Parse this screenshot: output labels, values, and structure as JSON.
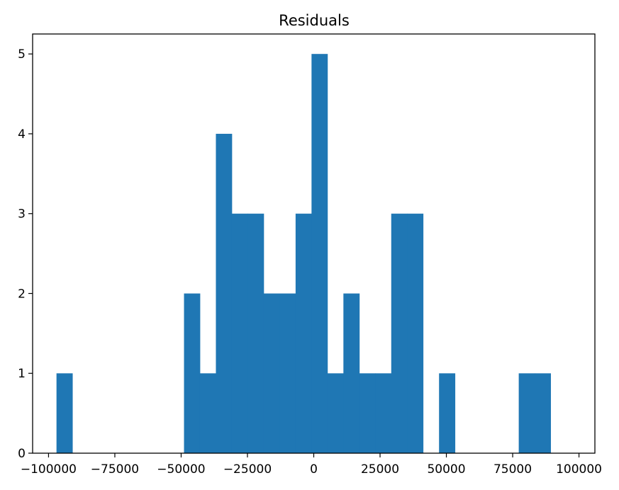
{
  "chart_data": {
    "type": "bar",
    "title": "Residuals",
    "xlabel": "",
    "ylabel": "",
    "bar_color": "#1f77b4",
    "bins": [
      {
        "x0": -97000,
        "x1": -90990,
        "count": 1
      },
      {
        "x0": -90990,
        "x1": -84980,
        "count": 0
      },
      {
        "x0": -84980,
        "x1": -78970,
        "count": 0
      },
      {
        "x0": -78970,
        "x1": -72960,
        "count": 0
      },
      {
        "x0": -72960,
        "x1": -66950,
        "count": 0
      },
      {
        "x0": -66950,
        "x1": -60940,
        "count": 0
      },
      {
        "x0": -60940,
        "x1": -54930,
        "count": 0
      },
      {
        "x0": -54930,
        "x1": -48920,
        "count": 0
      },
      {
        "x0": -48920,
        "x1": -42910,
        "count": 2
      },
      {
        "x0": -42910,
        "x1": -36900,
        "count": 1
      },
      {
        "x0": -36900,
        "x1": -30890,
        "count": 4
      },
      {
        "x0": -30890,
        "x1": -24880,
        "count": 3
      },
      {
        "x0": -24880,
        "x1": -18870,
        "count": 3
      },
      {
        "x0": -18870,
        "x1": -12860,
        "count": 2
      },
      {
        "x0": -12860,
        "x1": -6850,
        "count": 2
      },
      {
        "x0": -6850,
        "x1": -840,
        "count": 3
      },
      {
        "x0": -840,
        "x1": 5170,
        "count": 5
      },
      {
        "x0": 5170,
        "x1": 11180,
        "count": 1
      },
      {
        "x0": 11180,
        "x1": 17190,
        "count": 2
      },
      {
        "x0": 17190,
        "x1": 23200,
        "count": 1
      },
      {
        "x0": 23200,
        "x1": 29210,
        "count": 1
      },
      {
        "x0": 29210,
        "x1": 35220,
        "count": 3
      },
      {
        "x0": 35220,
        "x1": 41230,
        "count": 3
      },
      {
        "x0": 41230,
        "x1": 47240,
        "count": 0
      },
      {
        "x0": 47240,
        "x1": 53250,
        "count": 1
      },
      {
        "x0": 53250,
        "x1": 59260,
        "count": 0
      },
      {
        "x0": 59260,
        "x1": 65270,
        "count": 0
      },
      {
        "x0": 65270,
        "x1": 71280,
        "count": 0
      },
      {
        "x0": 71280,
        "x1": 77290,
        "count": 0
      },
      {
        "x0": 77290,
        "x1": 83300,
        "count": 1
      },
      {
        "x0": 83300,
        "x1": 89310,
        "count": 1
      }
    ],
    "xlim": [
      -106000,
      106000
    ],
    "ylim": [
      0,
      5.25
    ],
    "x_ticks": [
      {
        "value": -100000,
        "label": "−100000"
      },
      {
        "value": -75000,
        "label": "−75000"
      },
      {
        "value": -50000,
        "label": "−50000"
      },
      {
        "value": -25000,
        "label": "−25000"
      },
      {
        "value": 0,
        "label": "0"
      },
      {
        "value": 25000,
        "label": "25000"
      },
      {
        "value": 50000,
        "label": "50000"
      },
      {
        "value": 75000,
        "label": "75000"
      },
      {
        "value": 100000,
        "label": "100000"
      }
    ],
    "y_ticks": [
      {
        "value": 0,
        "label": "0"
      },
      {
        "value": 1,
        "label": "1"
      },
      {
        "value": 2,
        "label": "2"
      },
      {
        "value": 3,
        "label": "3"
      },
      {
        "value": 4,
        "label": "4"
      },
      {
        "value": 5,
        "label": "5"
      }
    ],
    "grid": false,
    "legend": "none"
  }
}
